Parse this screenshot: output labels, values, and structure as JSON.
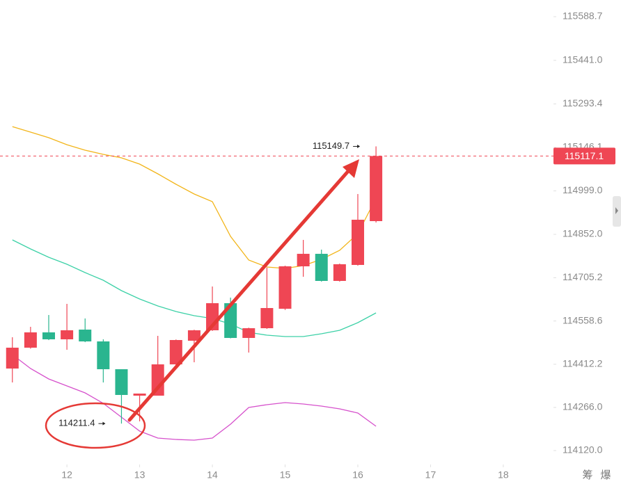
{
  "chart_data": {
    "type": "candlestick",
    "x": [
      11.25,
      11.5,
      11.75,
      12,
      12.25,
      12.5,
      12.75,
      13,
      13.25,
      13.5,
      13.75,
      14,
      14.25,
      14.5,
      14.75,
      15,
      15.25,
      15.5,
      15.75,
      16,
      16.25
    ],
    "open": [
      114397.7,
      114468.3,
      114520.1,
      114496.6,
      114529.5,
      114489.5,
      114395.4,
      114305.9,
      114305.9,
      114411.8,
      114491.9,
      114527.2,
      114618.9,
      114501.3,
      114534.2,
      114600.1,
      114743.7,
      114786.0,
      114694.3,
      114748.4,
      114896.7
    ],
    "high": [
      114503.6,
      114538.9,
      114578.9,
      114616.6,
      114567.2,
      114496.6,
      114395.4,
      114313.0,
      114508.3,
      114496.0,
      114529.0,
      114675.4,
      114637.8,
      114536.0,
      114739.0,
      114746.0,
      114833.1,
      114800.2,
      114753.0,
      114988.4,
      115149.7
    ],
    "low": [
      114350.6,
      114465.0,
      114494.0,
      114461.3,
      114487.0,
      114350.6,
      114211.4,
      114218.8,
      114305.9,
      114409.0,
      114418.9,
      114525.0,
      114500.0,
      114451.8,
      114532.0,
      114596.0,
      114708.4,
      114692.0,
      114692.0,
      114746.0,
      114892.0
    ],
    "close": [
      114468.3,
      114520.1,
      114496.6,
      114527.2,
      114489.5,
      114395.4,
      114308.3,
      114313.0,
      114411.8,
      114494.2,
      114527.2,
      114618.9,
      114501.3,
      114534.2,
      114602.5,
      114743.7,
      114786.0,
      114694.3,
      114750.7,
      114901.4,
      115117.1
    ],
    "up_color": "#ef4654",
    "down_color": "#2ab58f",
    "series": [
      {
        "color": "#f2b51a",
        "values": [
          115216.7,
          115197.9,
          115179.1,
          115155.5,
          115136.7,
          115122.6,
          115110.8,
          115089.6,
          115056.7,
          115021.4,
          114988.4,
          114962.6,
          114844.9,
          114764.9,
          114741.3,
          114736.6,
          114746.0,
          114767.2,
          114797.8,
          114854.3,
          114974.3
        ]
      },
      {
        "color": "#3dd1a7",
        "values": [
          114833.1,
          114802.5,
          114774.3,
          114750.7,
          114722.5,
          114696.6,
          114661.3,
          114633.1,
          114609.5,
          114590.7,
          114576.6,
          114567.2,
          114548.3,
          114520.1,
          114510.7,
          114506.0,
          114506.0,
          114515.4,
          114527.2,
          114553.0,
          114586.0
        ]
      },
      {
        "color": "#d651cc",
        "values": [
          114444.8,
          114397.7,
          114362.4,
          114338.9,
          114315.3,
          114280.0,
          114233.0,
          114185.9,
          114162.4,
          114157.7,
          114155.3,
          114162.4,
          114209.4,
          114265.9,
          114275.3,
          114282.4,
          114277.7,
          114270.6,
          114261.2,
          114247.1,
          114202.4
        ]
      }
    ],
    "xlim": [
      11.08,
      18.69
    ],
    "xticks": [
      12,
      13,
      14,
      15,
      16,
      17,
      18
    ],
    "ylim": [
      114072.9,
      115645.2
    ],
    "yticks": [
      115588.7,
      {
        "value": 115441.0,
        "label": "115441.0"
      },
      115293.4,
      115146.1,
      {
        "value": 114999.0,
        "label": "114999.0"
      },
      {
        "value": 114852.0,
        "label": "114852.0"
      },
      114705.2,
      114558.6,
      114412.2,
      {
        "value": 114266.0,
        "label": "114266.0"
      },
      {
        "value": 114120.0,
        "label": "114120.0"
      }
    ],
    "current_price": 115117.1,
    "annotations": [
      {
        "text": "115149.7",
        "x": 16.25,
        "y": 115149.7
      },
      {
        "text": "114211.4",
        "x": 12.75,
        "y": 114211.4
      }
    ],
    "toolbar": [
      "筹",
      "爆"
    ]
  }
}
